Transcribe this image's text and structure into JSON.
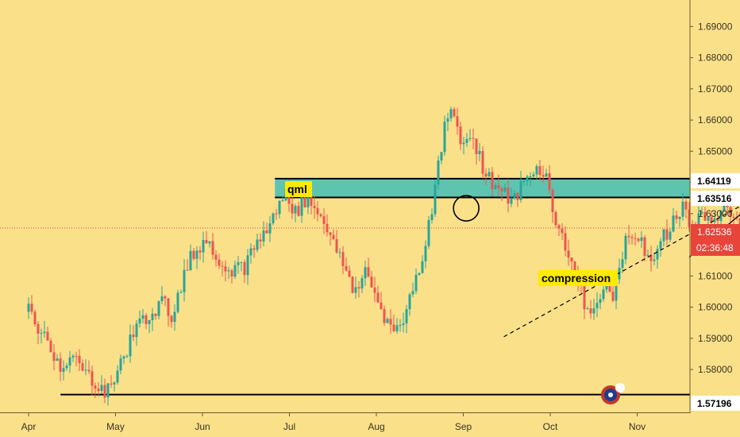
{
  "chart_data": {
    "type": "candlestick",
    "title": "",
    "x_labels": [
      "Apr",
      "May",
      "Jun",
      "Jul",
      "Aug",
      "Sep",
      "Oct",
      "Nov"
    ],
    "y_ticks": [
      "1.69000",
      "1.68000",
      "1.67000",
      "1.66000",
      "1.65000",
      "1.64000",
      "1.63000",
      "1.61000",
      "1.60000",
      "1.59000",
      "1.58000"
    ],
    "ylim": [
      1.5665,
      1.6985
    ],
    "grid": false,
    "series": [
      {
        "points": [
          [
            "Apr 1",
            1.5985
          ],
          [
            "Apr 5",
            1.592
          ],
          [
            "Apr 9",
            1.5865
          ],
          [
            "Apr 12",
            1.581
          ],
          [
            "Apr 16",
            1.584
          ],
          [
            "Apr 20",
            1.579
          ],
          [
            "Apr 24",
            1.576
          ],
          [
            "Apr 28",
            1.572
          ],
          [
            "May 1",
            1.578
          ],
          [
            "May 4",
            1.584
          ],
          [
            "May 7",
            1.591
          ],
          [
            "May 11",
            1.596
          ],
          [
            "May 14",
            1.599
          ],
          [
            "May 18",
            1.601
          ],
          [
            "May 21",
            1.597
          ],
          [
            "May 25",
            1.609
          ],
          [
            "May 28",
            1.616
          ],
          [
            "Jun 2",
            1.622
          ],
          [
            "Jun 5",
            1.618
          ],
          [
            "Jun 9",
            1.613
          ],
          [
            "Jun 12",
            1.612
          ],
          [
            "Jun 16",
            1.613
          ],
          [
            "Jun 19",
            1.62
          ],
          [
            "Jun 23",
            1.624
          ],
          [
            "Jun 26",
            1.63
          ],
          [
            "Jun 30",
            1.637
          ],
          [
            "Jul 3",
            1.63
          ],
          [
            "Jul 7",
            1.635
          ],
          [
            "Jul 10",
            1.632
          ],
          [
            "Jul 14",
            1.627
          ],
          [
            "Jul 17",
            1.619
          ],
          [
            "Jul 21",
            1.612
          ],
          [
            "Jul 24",
            1.605
          ],
          [
            "Jul 28",
            1.611
          ],
          [
            "Jul 31",
            1.605
          ],
          [
            "Aug 4",
            1.597
          ],
          [
            "Aug 7",
            1.592
          ],
          [
            "Aug 11",
            1.597
          ],
          [
            "Aug 14",
            1.606
          ],
          [
            "Aug 18",
            1.618
          ],
          [
            "Aug 21",
            1.633
          ],
          [
            "Aug 25",
            1.656
          ],
          [
            "Aug 28",
            1.663
          ],
          [
            "Sep 1",
            1.652
          ],
          [
            "Sep 4",
            1.656
          ],
          [
            "Sep 8",
            1.644
          ],
          [
            "Sep 11",
            1.64
          ],
          [
            "Sep 15",
            1.636
          ],
          [
            "Sep 18",
            1.633
          ],
          [
            "Sep 22",
            1.64
          ],
          [
            "Sep 25",
            1.644
          ],
          [
            "Sep 29",
            1.644
          ],
          [
            "Oct 2",
            1.63
          ],
          [
            "Oct 6",
            1.622
          ],
          [
            "Oct 9",
            1.613
          ],
          [
            "Oct 13",
            1.602
          ],
          [
            "Oct 16",
            1.596
          ],
          [
            "Oct 20",
            1.608
          ],
          [
            "Oct 23",
            1.603
          ],
          [
            "Oct 27",
            1.619
          ],
          [
            "Oct 30",
            1.624
          ],
          [
            "Nov 3",
            1.62
          ],
          [
            "Nov 6",
            1.616
          ],
          [
            "Nov 10",
            1.622
          ],
          [
            "Nov 13",
            1.627
          ],
          [
            "Nov 17",
            1.632
          ],
          [
            "Nov 20",
            1.626
          ],
          [
            "Nov 24",
            1.63
          ],
          [
            "Nov 27",
            1.624
          ],
          [
            "Dec 1",
            1.634
          ],
          [
            "Dec 4",
            1.628
          ],
          [
            "Dec 8",
            1.6253
          ]
        ]
      }
    ],
    "zone": {
      "from": 1.63516,
      "to": 1.64119,
      "color": "#5ec4b0",
      "label": "qml"
    },
    "levels": [
      {
        "value": 1.57196,
        "label": "1.57196"
      },
      {
        "value": 1.63516,
        "label": "1.63516"
      },
      {
        "value": 1.64119,
        "label": "1.64119"
      }
    ],
    "current_price": {
      "value": 1.62536,
      "label": "1.62536",
      "countdown": "02:36:48",
      "color": "#e8443a"
    },
    "annotations": [
      "qml",
      "compression"
    ],
    "colors": {
      "up": "#26a69a",
      "down": "#ef5350",
      "background": "#fbe08a"
    }
  }
}
